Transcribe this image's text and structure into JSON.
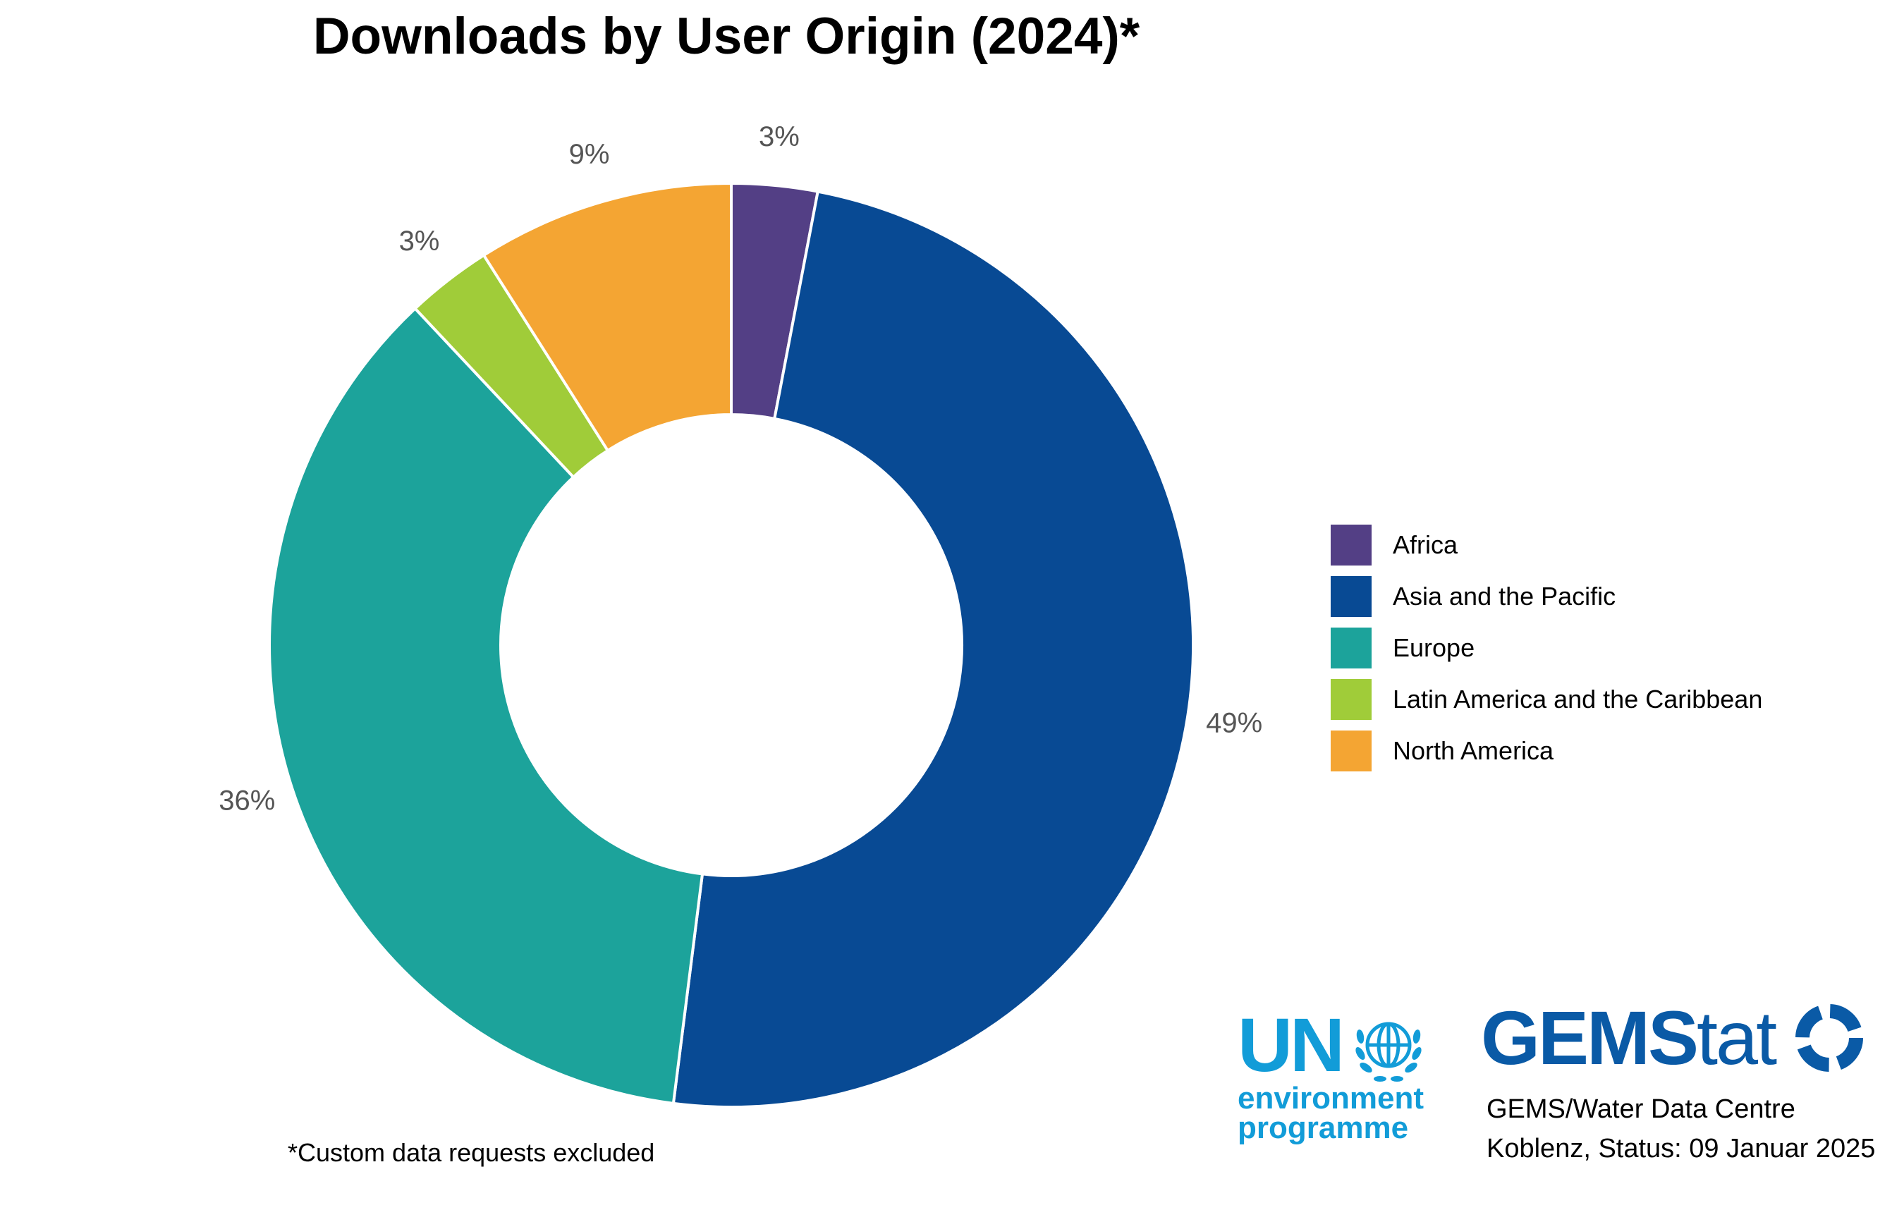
{
  "chart_data": {
    "type": "pie",
    "variant": "donut",
    "title": "Downloads by User Origin (2024)*",
    "categories": [
      "Africa",
      "Asia and the Pacific",
      "Europe",
      "Latin America and the Caribbean",
      "North America"
    ],
    "values": [
      3,
      49,
      36,
      3,
      9
    ],
    "labels": [
      "3%",
      "49%",
      "36%",
      "3%",
      "9%"
    ],
    "colors": [
      "#533f85",
      "#084a94",
      "#1ca39b",
      "#a0cc39",
      "#f4a533"
    ],
    "legend_position": "right"
  },
  "footnote": "*Custom data requests excluded",
  "logos": {
    "un": {
      "letters": "UN",
      "line1": "environment",
      "line2": "programme",
      "color": "#129cd8"
    },
    "gems": {
      "bold": "GEMS",
      "light": "tat",
      "color": "#0a5aa6"
    }
  },
  "source": {
    "line1": "GEMS/Water Data Centre",
    "line2": "Koblenz, Status: 09 Januar 2025"
  }
}
